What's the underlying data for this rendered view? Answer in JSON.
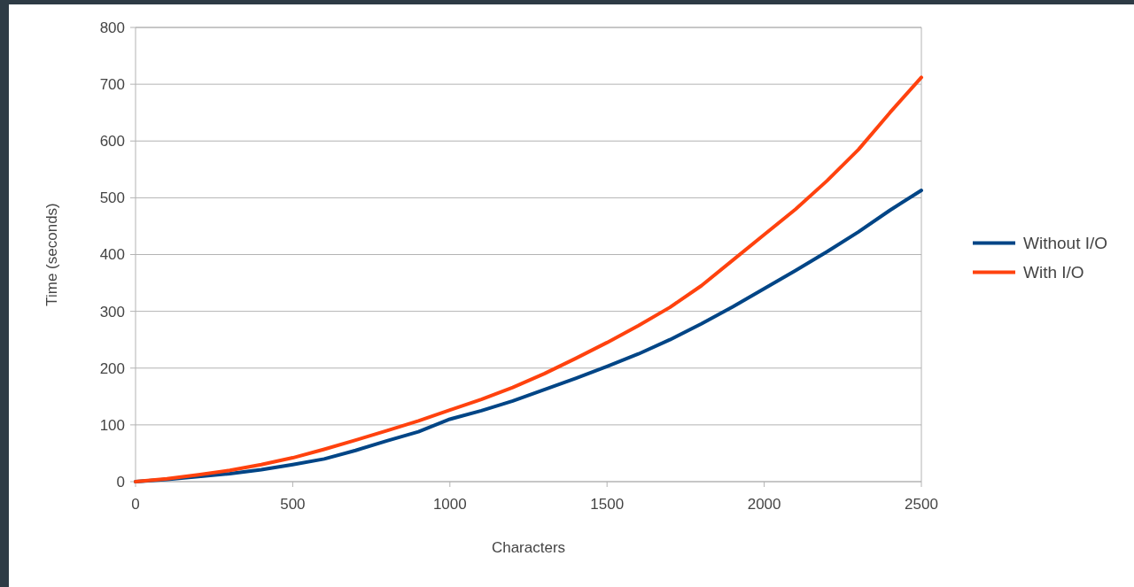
{
  "chart_data": {
    "type": "line",
    "xlabel": "Characters",
    "ylabel": "Time (seconds)",
    "x": [
      0,
      100,
      200,
      300,
      400,
      500,
      600,
      700,
      800,
      900,
      1000,
      1100,
      1200,
      1300,
      1400,
      1500,
      1600,
      1700,
      1800,
      1900,
      2000,
      2100,
      2200,
      2300,
      2400,
      2500
    ],
    "series": [
      {
        "name": "Without I/O",
        "color": "#004586",
        "values": [
          0,
          4,
          9,
          14,
          21,
          30,
          40,
          55,
          72,
          88,
          110,
          125,
          142,
          162,
          182,
          203,
          225,
          250,
          278,
          308,
          340,
          372,
          405,
          440,
          478,
          513
        ]
      },
      {
        "name": "With I/O",
        "color": "#ff420e",
        "values": [
          0,
          5,
          12,
          20,
          30,
          42,
          57,
          73,
          90,
          107,
          126,
          145,
          166,
          190,
          217,
          245,
          275,
          307,
          345,
          390,
          435,
          480,
          530,
          585,
          650,
          712
        ]
      }
    ],
    "xlim": [
      0,
      2500
    ],
    "xticks": [
      0,
      500,
      1000,
      1500,
      2000,
      2500
    ],
    "ylim": [
      0,
      800
    ],
    "yticks": [
      0,
      100,
      200,
      300,
      400,
      500,
      600,
      700,
      800
    ],
    "grid": "y",
    "legend": "right",
    "marker": "none",
    "line_style": "solid"
  }
}
